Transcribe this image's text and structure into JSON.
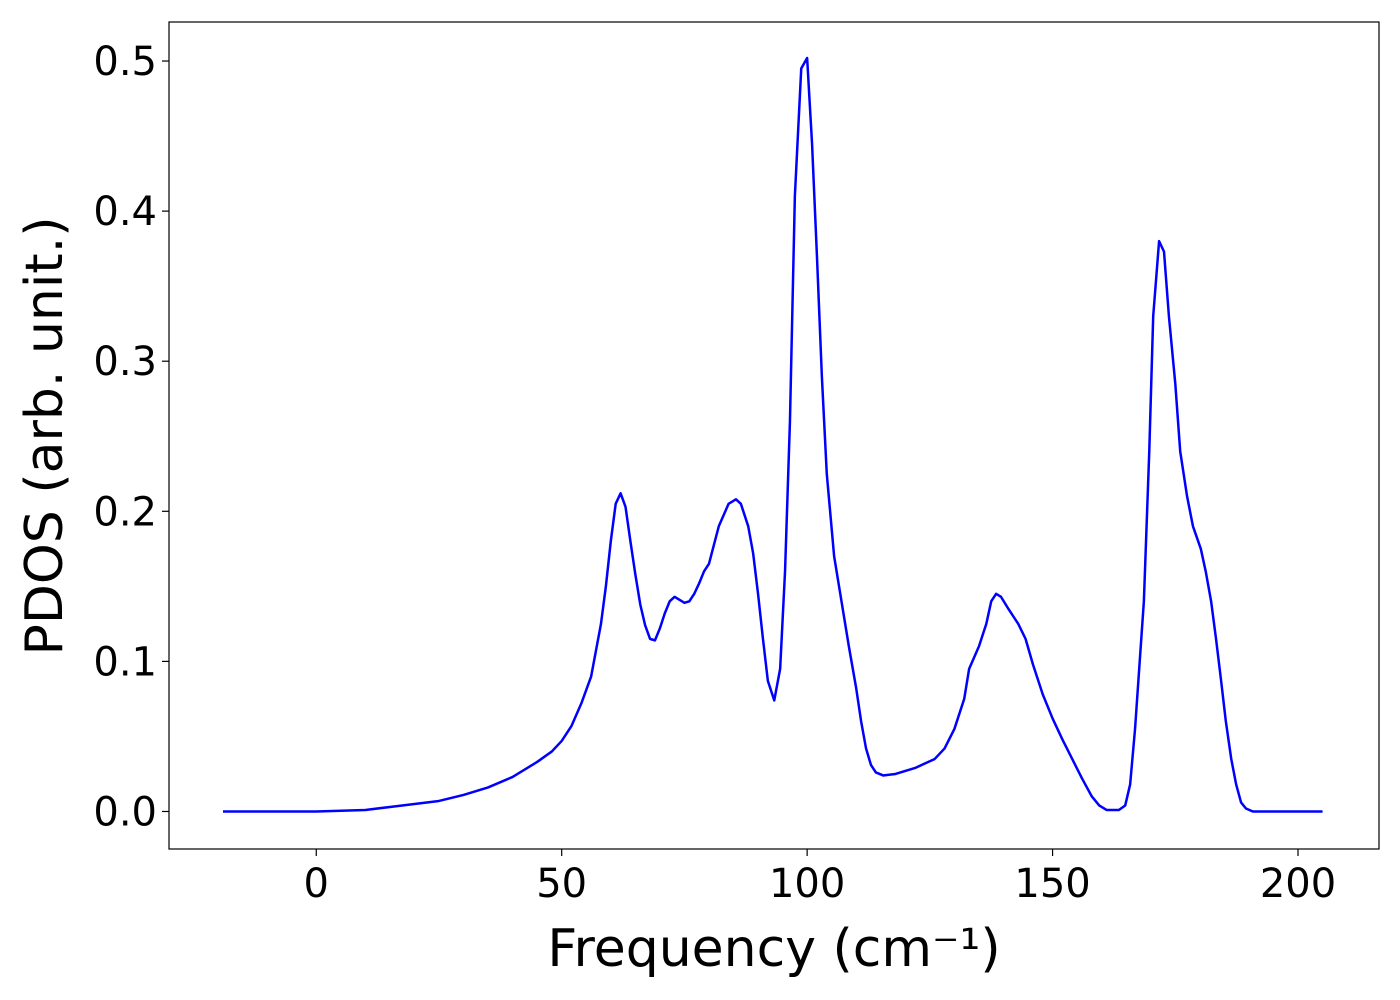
{
  "chart_data": {
    "type": "line",
    "xlabel": "Frequency (cm⁻¹)",
    "ylabel": "PDOS (arb. unit.)",
    "x": [
      -19,
      0,
      5,
      10,
      15,
      20,
      25,
      30,
      35,
      40,
      45,
      48,
      50,
      52,
      54,
      56,
      58,
      59,
      60,
      61,
      62,
      63,
      64,
      65,
      66,
      67,
      68,
      69,
      70,
      71,
      72,
      73,
      74,
      75,
      76,
      77,
      78,
      79,
      80,
      82,
      84,
      85.5,
      86.5,
      88,
      89,
      90,
      91,
      92,
      93.3,
      94.5,
      95.5,
      96.5,
      97.5,
      98.8,
      100,
      101,
      102,
      103,
      104,
      105.5,
      107,
      108.5,
      110,
      111,
      112,
      113,
      114,
      115.5,
      118,
      122,
      126,
      128,
      130,
      132,
      133,
      135,
      136.5,
      137.5,
      138.5,
      139.5,
      141,
      143,
      144.5,
      146,
      148,
      150,
      152,
      154,
      156,
      158,
      159.5,
      161,
      163.5,
      164.8,
      165.8,
      166.8,
      168.6,
      169.7,
      170.5,
      171.7,
      172.7,
      173.7,
      175,
      176,
      177.4,
      178.6,
      180.2,
      181.2,
      182.3,
      183.3,
      184.3,
      185.3,
      186.4,
      187.4,
      188.4,
      189.4,
      190.8,
      205
    ],
    "series": [
      {
        "name": "PDOS",
        "color": "#0000ff",
        "values": [
          0,
          0,
          0.0005,
          0.001,
          0.003,
          0.005,
          0.007,
          0.011,
          0.016,
          0.023,
          0.033,
          0.04,
          0.047,
          0.057,
          0.072,
          0.09,
          0.125,
          0.15,
          0.18,
          0.205,
          0.212,
          0.203,
          0.18,
          0.158,
          0.138,
          0.124,
          0.115,
          0.114,
          0.122,
          0.132,
          0.14,
          0.143,
          0.141,
          0.139,
          0.14,
          0.145,
          0.152,
          0.16,
          0.165,
          0.19,
          0.205,
          0.208,
          0.205,
          0.19,
          0.172,
          0.145,
          0.115,
          0.087,
          0.074,
          0.095,
          0.16,
          0.26,
          0.41,
          0.495,
          0.502,
          0.445,
          0.37,
          0.29,
          0.225,
          0.17,
          0.14,
          0.11,
          0.082,
          0.06,
          0.042,
          0.031,
          0.026,
          0.024,
          0.025,
          0.029,
          0.035,
          0.042,
          0.055,
          0.075,
          0.095,
          0.11,
          0.125,
          0.14,
          0.145,
          0.143,
          0.135,
          0.125,
          0.115,
          0.098,
          0.078,
          0.062,
          0.048,
          0.035,
          0.022,
          0.01,
          0.004,
          0.001,
          0.001,
          0.004,
          0.018,
          0.055,
          0.14,
          0.24,
          0.33,
          0.38,
          0.373,
          0.33,
          0.285,
          0.24,
          0.21,
          0.19,
          0.175,
          0.16,
          0.14,
          0.115,
          0.088,
          0.06,
          0.035,
          0.018,
          0.006,
          0.002,
          0,
          0
        ]
      }
    ],
    "xlim": [
      -30,
      216.5
    ],
    "ylim": [
      -0.025,
      0.526
    ],
    "xticks": [
      0,
      50,
      100,
      150,
      200
    ],
    "yticks": [
      {
        "value": 0,
        "label": "0.0"
      },
      0.1,
      0.2,
      0.3,
      0.4,
      0.5
    ]
  }
}
